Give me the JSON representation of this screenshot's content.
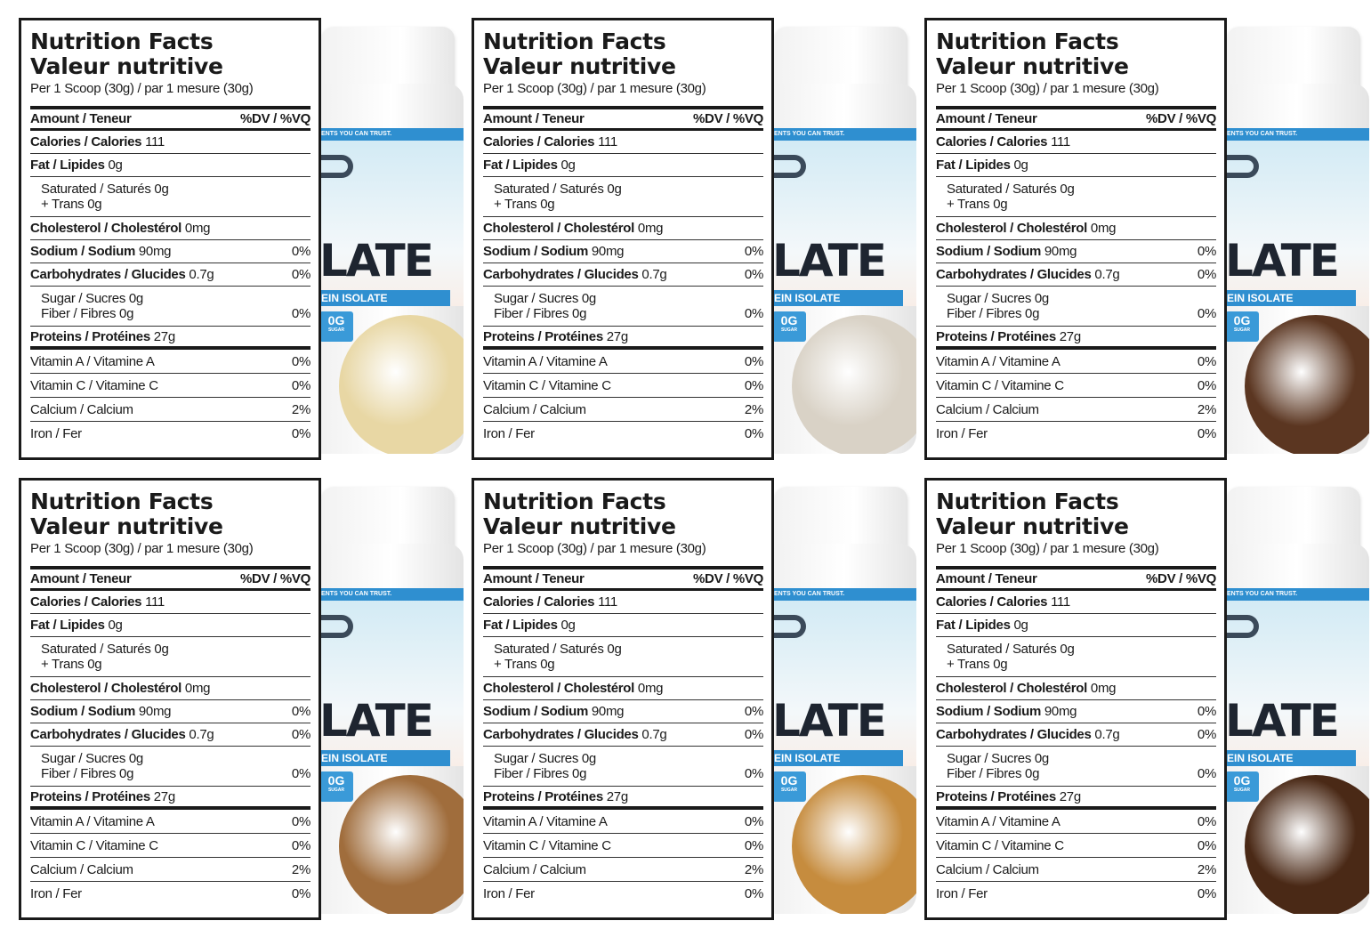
{
  "label": {
    "title_en": "Nutrition Facts",
    "title_fr": "Valeur nutritive",
    "serving": "Per 1 Scoop (30g) / par 1 mesure (30g)",
    "amount_header": "Amount / Teneur",
    "dv_header": "%DV / %VQ",
    "calories": {
      "name": "Calories / Calories",
      "amount": "111"
    },
    "fat": {
      "name": "Fat / Lipides",
      "amount": "0g"
    },
    "saturated": {
      "name": "Saturated / Saturés",
      "amount": "0g"
    },
    "trans": {
      "name": "+ Trans",
      "amount": "0g"
    },
    "cholesterol": {
      "name": "Cholesterol / Cholestérol",
      "amount": "0mg"
    },
    "sodium": {
      "name": "Sodium / Sodium",
      "amount": "90mg",
      "dv": "0%"
    },
    "carbs": {
      "name": "Carbohydrates / Glucides",
      "amount": "0.7g",
      "dv": "0%"
    },
    "sugar": {
      "name": "Sugar / Sucres",
      "amount": "0g"
    },
    "fiber": {
      "name": "Fiber / Fibres",
      "amount": "0g",
      "dv": "0%"
    },
    "protein": {
      "name": "Proteins / Protéines",
      "amount": "27g"
    },
    "vitamin_a": {
      "name": "Vitamin A / Vitamine A",
      "dv": "0%"
    },
    "vitamin_c": {
      "name": "Vitamin C / Vitamine C",
      "dv": "0%"
    },
    "calcium": {
      "name": "Calcium / Calcium",
      "dv": "2%"
    },
    "iron": {
      "name": "Iron / Fer",
      "dv": "0%"
    }
  },
  "tub": {
    "tagline": "ENTS YOU CAN TRUST.",
    "brand_text": "LATE",
    "subtitle": "EIN ISOLATE",
    "sugar_value": "0G",
    "sugar_label": "SUGAR"
  },
  "panels": [
    {
      "flavor_color": "#e8d7a4"
    },
    {
      "flavor_color": "#d9d2c6"
    },
    {
      "flavor_color": "#5b3621"
    },
    {
      "flavor_color": "#a06d3c"
    },
    {
      "flavor_color": "#c68c3e"
    },
    {
      "flavor_color": "#4a2916"
    }
  ]
}
